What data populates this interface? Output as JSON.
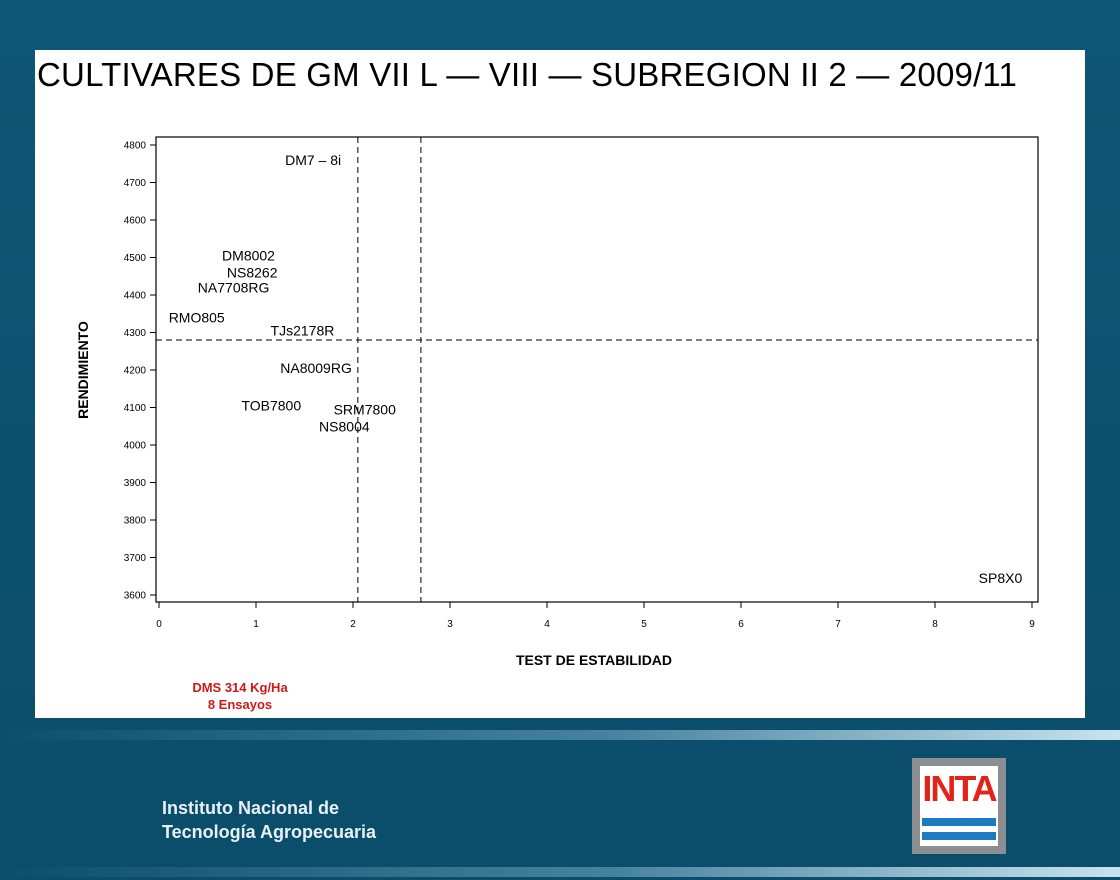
{
  "chart_data": {
    "type": "scatter",
    "title": "CULTIVARES DE GM VII L — VIII — SUBREGION II 2 — 2009/11",
    "xlabel": "TEST DE ESTABILIDAD",
    "ylabel": "RENDIMIENTO",
    "xlim": [
      0,
      9
    ],
    "ylim": [
      3600,
      4800
    ],
    "xticks": [
      "0",
      "1",
      "2",
      "3",
      "4",
      "5",
      "6",
      "7",
      "8",
      "9"
    ],
    "yticks": [
      "3600",
      "3700",
      "3800",
      "3900",
      "4000",
      "4100",
      "4200",
      "4300",
      "4400",
      "4500",
      "4600",
      "4700",
      "4800"
    ],
    "grid": false,
    "reference_lines": {
      "vertical": [
        2.05,
        2.7
      ],
      "horizontal": [
        4280
      ]
    },
    "points": [
      {
        "label": "DM7 – 8i",
        "x": 1.3,
        "y": 4760
      },
      {
        "label": "DM8002",
        "x": 0.65,
        "y": 4505
      },
      {
        "label": "NS8262",
        "x": 0.7,
        "y": 4460
      },
      {
        "label": "NA7708RG",
        "x": 0.4,
        "y": 4420
      },
      {
        "label": "RMO805",
        "x": 0.1,
        "y": 4340
      },
      {
        "label": "TJs2178R",
        "x": 1.15,
        "y": 4305
      },
      {
        "label": "NA8009RG",
        "x": 1.25,
        "y": 4205
      },
      {
        "label": "TOB7800",
        "x": 0.85,
        "y": 4105
      },
      {
        "label": "SRM7800",
        "x": 1.8,
        "y": 4095
      },
      {
        "label": "NS8004",
        "x": 1.65,
        "y": 4050
      },
      {
        "label": "SP8X0",
        "x": 8.45,
        "y": 3645
      }
    ]
  },
  "notes": {
    "line1": "DMS 314 Kg/Ha",
    "line2": "8 Ensayos"
  },
  "footer": {
    "org_line1": "Instituto Nacional de",
    "org_line2": "Tecnología Agropecuaria",
    "logo_text": "INTA"
  }
}
